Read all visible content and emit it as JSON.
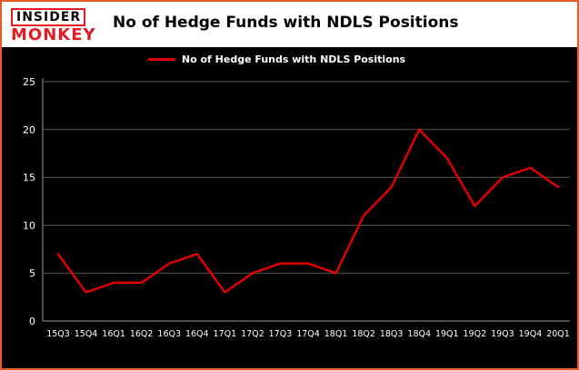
{
  "logo": {
    "line1": "INSIDER",
    "line2": "MONKEY"
  },
  "title": "No of Hedge Funds with NDLS Positions",
  "legend": "No of Hedge Funds with NDLS Positions",
  "colors": {
    "border": "#ea5b28",
    "line": "#e00000",
    "chart_background": "#000000",
    "grid": "#575757",
    "axis": "#9a9a9a",
    "axis_text": "#ffffff",
    "logo_red": "#e31b23"
  },
  "chart_data": {
    "type": "line",
    "title": "No of Hedge Funds with NDLS Positions",
    "series_name": "No of Hedge Funds with NDLS Positions",
    "categories": [
      "15Q3",
      "15Q4",
      "16Q1",
      "16Q2",
      "16Q3",
      "16Q4",
      "17Q1",
      "17Q2",
      "17Q3",
      "17Q4",
      "18Q1",
      "18Q2",
      "18Q3",
      "18Q4",
      "19Q1",
      "19Q2",
      "19Q3",
      "19Q4",
      "20Q1"
    ],
    "values": [
      7,
      3,
      4,
      4,
      6,
      7,
      3,
      5,
      6,
      6,
      5,
      11,
      14,
      20,
      17,
      12,
      15,
      16,
      14
    ],
    "xlabel": "",
    "ylabel": "",
    "ylim": [
      0,
      25
    ],
    "yticks": [
      0,
      5,
      10,
      15,
      20,
      25
    ],
    "grid": true,
    "legend_position": "top"
  }
}
